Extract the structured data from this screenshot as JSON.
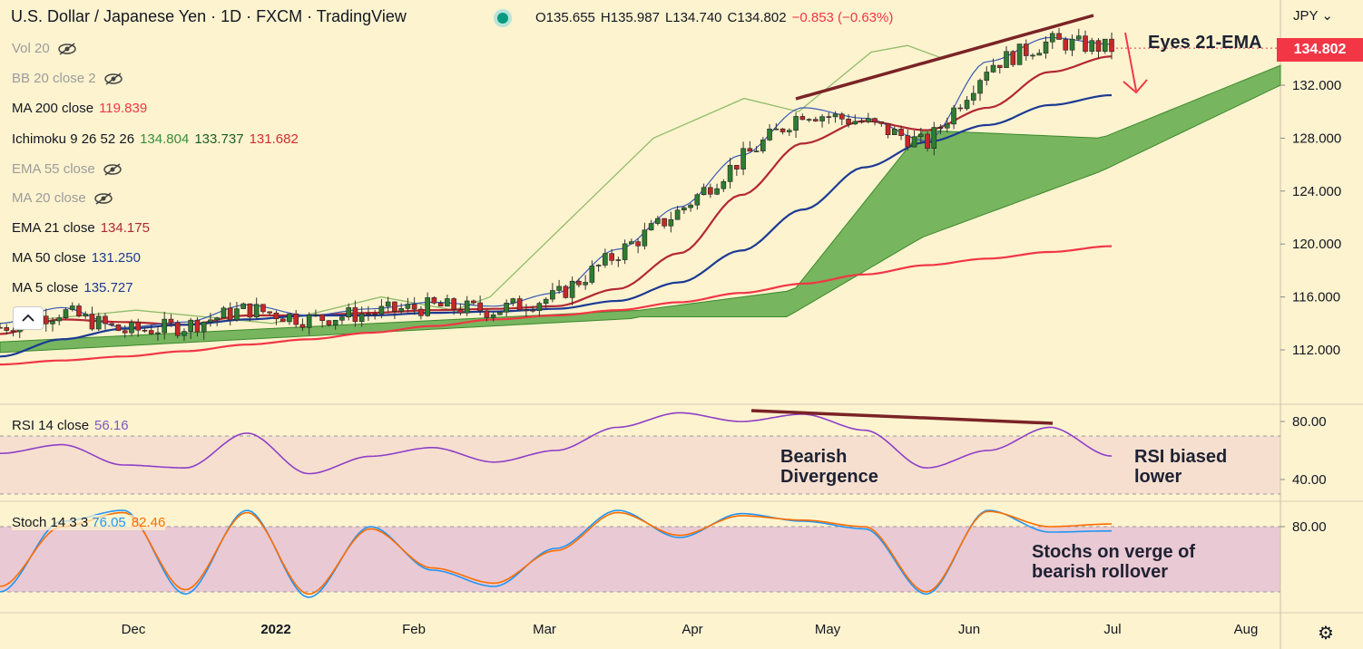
{
  "header": {
    "title": "U.S. Dollar / Japanese Yen · 1D · FXCM · TradingView",
    "ohlc": {
      "open": "O135.655",
      "high": "H135.987",
      "low": "L134.740",
      "close": "C134.802",
      "change": "−0.853 (−0.63%)"
    }
  },
  "legend": [
    {
      "label": "Vol 20",
      "value": "",
      "hidden": true
    },
    {
      "label": "BB 20 close 2",
      "value": "",
      "hidden": true
    },
    {
      "label": "MA 200 close",
      "value": "119.839",
      "color": "#f23645",
      "hidden": false
    },
    {
      "label": "Ichimoku 9 26 52 26",
      "values": [
        "134.804",
        "133.737",
        "131.682"
      ],
      "colors": [
        "#388e3c",
        "#1b5e20",
        "#d32f2f"
      ],
      "hidden": false
    },
    {
      "label": "EMA 55 close",
      "value": "",
      "hidden": true
    },
    {
      "label": "MA 20 close",
      "value": "",
      "hidden": true
    },
    {
      "label": "EMA 21 close",
      "value": "134.175",
      "color": "#b22833",
      "hidden": false
    },
    {
      "label": "MA 50 close",
      "value": "131.250",
      "color": "#1c3a94",
      "hidden": false
    },
    {
      "label": "MA 5 close",
      "value": "135.727",
      "color": "#1c3a94",
      "hidden": false
    }
  ],
  "rsi_legend": {
    "label": "RSI 14 close",
    "value": "56.16"
  },
  "stoch_legend": {
    "label": "Stoch 14 3 3",
    "k": "76.05",
    "d": "82.46"
  },
  "currency": "JPY",
  "price_badge": "134.802",
  "annotations": {
    "eyes": "Eyes 21-EMA",
    "divergence_line1": "Bearish",
    "divergence_line2": "Divergence",
    "rsi_line1": "RSI biased",
    "rsi_line2": "lower",
    "stoch_line1": "Stochs on verge of",
    "stoch_line2": "bearish rollover"
  },
  "months": [
    "Dec",
    "2022",
    "Feb",
    "Mar",
    "Apr",
    "May",
    "Jun",
    "Jul",
    "Aug"
  ],
  "chart_data": [
    {
      "type": "line",
      "panel": "price",
      "yticks": [
        132,
        128,
        124,
        120,
        116,
        112
      ],
      "ytick_labels": [
        "132.000",
        "128.000",
        "124.000",
        "120.000",
        "116.000",
        "112.000"
      ],
      "ylim": [
        108.5,
        136.5
      ],
      "x": [
        "Nov 08",
        "Nov 20",
        "Dec 01",
        "Dec 15",
        "Jan 01",
        "Jan 15",
        "Feb 01",
        "Feb 15",
        "Mar 01",
        "Mar 10",
        "Mar 20",
        "Apr 01",
        "Apr 15",
        "May 01",
        "May 15",
        "Jun 01",
        "Jun 10",
        "Jun 20",
        "Jul 01"
      ],
      "series": [
        {
          "name": "USDJPY close",
          "values": [
            113.7,
            114.9,
            113.4,
            113.8,
            115.1,
            114.3,
            114.8,
            115.3,
            115.0,
            116.0,
            119.3,
            122.5,
            126.4,
            130.0,
            129.2,
            127.5,
            133.5,
            135.3,
            134.8
          ]
        },
        {
          "name": "MA 200 close",
          "values": [
            110.9,
            111.2,
            111.5,
            111.9,
            112.4,
            112.8,
            113.3,
            113.8,
            114.3,
            114.6,
            115.0,
            115.6,
            116.3,
            117.0,
            117.7,
            118.4,
            118.9,
            119.4,
            119.839
          ]
        },
        {
          "name": "EMA 21 close",
          "values": [
            113.2,
            114.3,
            114.1,
            113.9,
            114.6,
            114.6,
            114.8,
            115.0,
            115.1,
            115.3,
            116.6,
            119.3,
            123.7,
            127.6,
            129.3,
            128.6,
            130.3,
            133.0,
            134.175
          ]
        },
        {
          "name": "MA 50 close",
          "values": [
            111.5,
            112.8,
            113.6,
            113.9,
            114.3,
            114.6,
            114.6,
            114.8,
            114.9,
            115.1,
            115.7,
            117.1,
            119.5,
            122.6,
            125.8,
            127.7,
            129.0,
            130.5,
            131.25
          ]
        }
      ]
    },
    {
      "type": "line",
      "panel": "rsi",
      "title": "RSI 14 close",
      "yticks": [
        80,
        40
      ],
      "ytick_labels": [
        "80.00",
        "40.00"
      ],
      "band": [
        30,
        70
      ],
      "ylim": [
        20,
        90
      ],
      "x": [
        "Nov 08",
        "Nov 20",
        "Dec 01",
        "Dec 15",
        "Jan 01",
        "Jan 15",
        "Feb 01",
        "Feb 15",
        "Mar 01",
        "Mar 10",
        "Mar 20",
        "Apr 01",
        "Apr 15",
        "May 01",
        "May 15",
        "Jun 01",
        "Jun 10",
        "Jun 20",
        "Jul 01"
      ],
      "series": [
        {
          "name": "RSI 14 close",
          "values": [
            58,
            64,
            50,
            48,
            72,
            44,
            56,
            62,
            52,
            60,
            76,
            86,
            80,
            85,
            74,
            48,
            60,
            76,
            56.16
          ]
        }
      ]
    },
    {
      "type": "line",
      "panel": "stoch",
      "title": "Stoch 14 3 3",
      "yticks": [
        80
      ],
      "ytick_labels": [
        "80.00"
      ],
      "band": [
        20,
        80
      ],
      "ylim": [
        0,
        100
      ],
      "x": [
        "Nov 08",
        "Nov 20",
        "Dec 01",
        "Dec 15",
        "Jan 01",
        "Jan 15",
        "Feb 01",
        "Feb 15",
        "Mar 01",
        "Mar 10",
        "Mar 20",
        "Apr 01",
        "Apr 15",
        "May 01",
        "May 15",
        "Jun 01",
        "Jun 10",
        "Jun 20",
        "Jul 01"
      ],
      "series": [
        {
          "name": "%K",
          "values": [
            20,
            85,
            95,
            18,
            95,
            15,
            80,
            40,
            25,
            60,
            95,
            70,
            92,
            85,
            78,
            18,
            95,
            75,
            76.05
          ]
        },
        {
          "name": "%D",
          "values": [
            25,
            80,
            93,
            22,
            93,
            18,
            78,
            42,
            28,
            58,
            93,
            72,
            90,
            86,
            80,
            20,
            94,
            80,
            82.46
          ]
        }
      ]
    }
  ]
}
